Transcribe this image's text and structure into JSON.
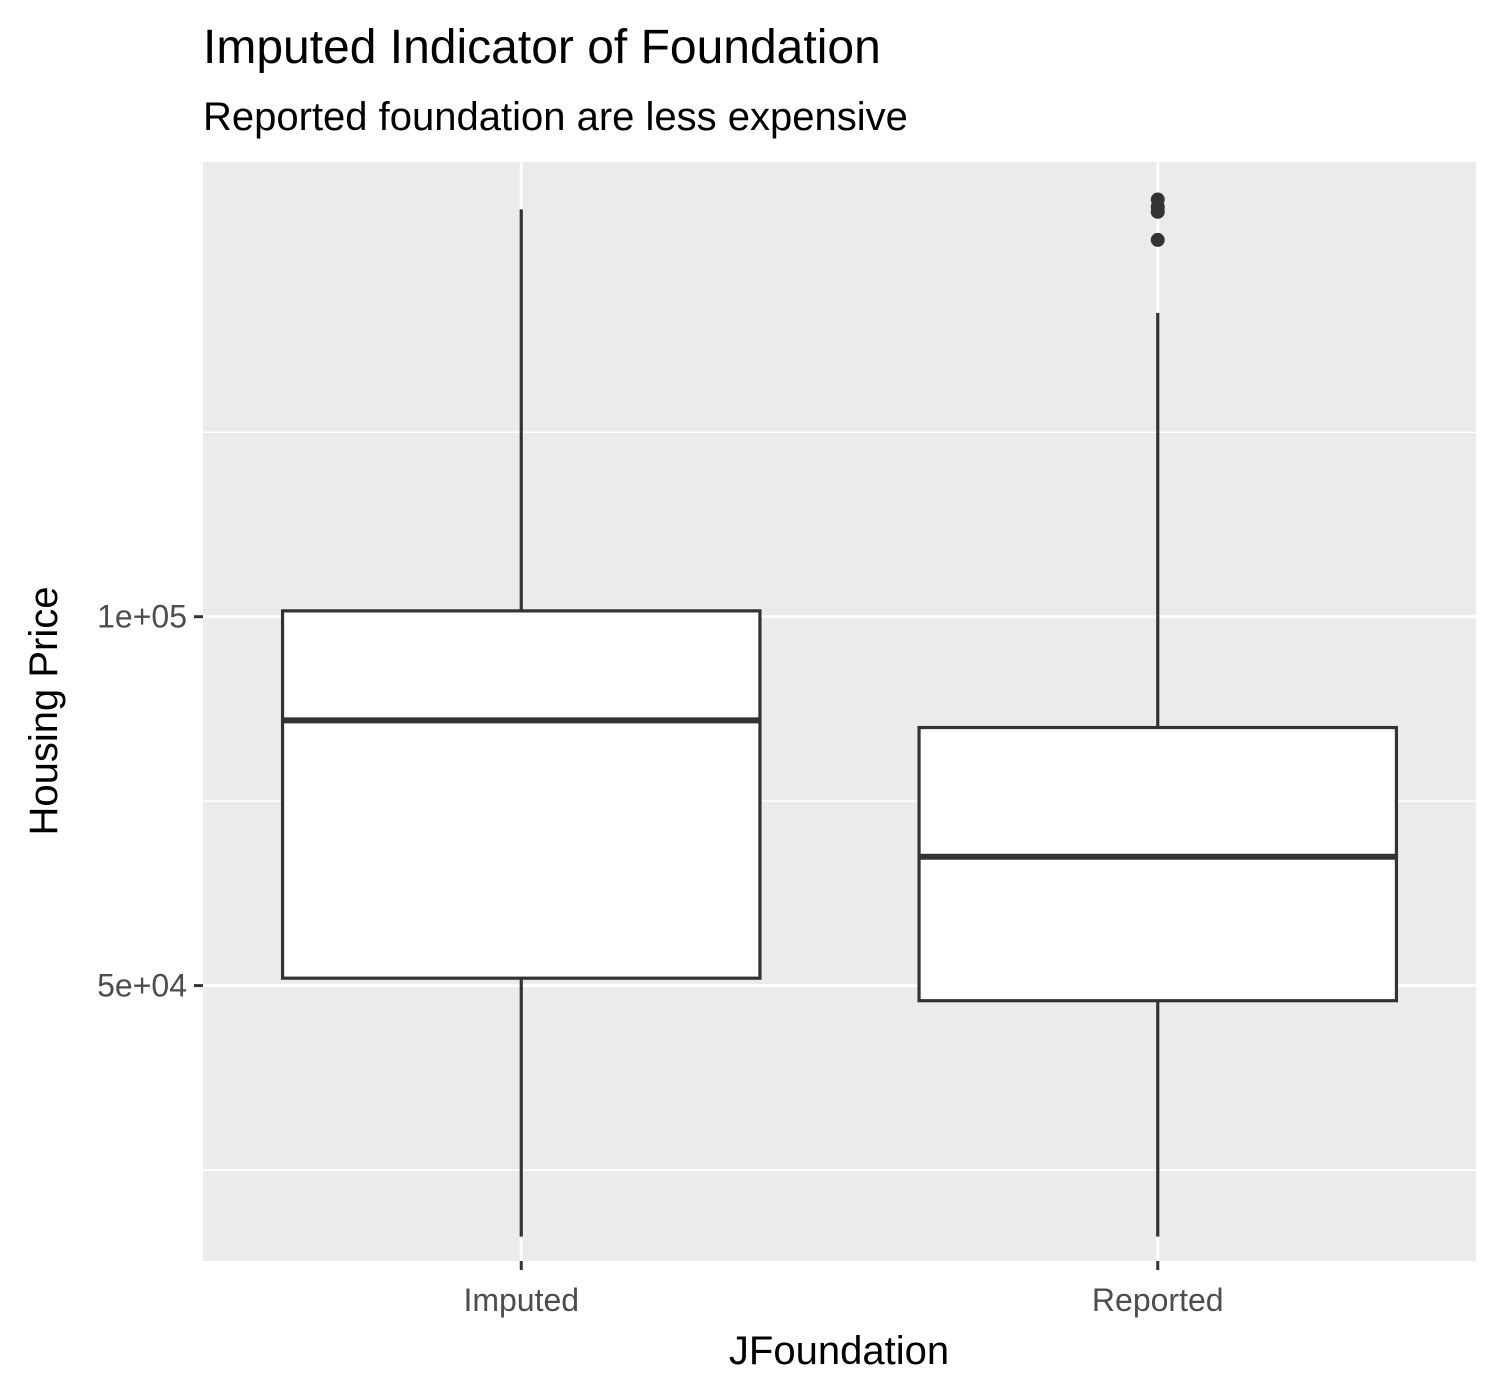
{
  "chart_data": {
    "type": "boxplot",
    "title": "Imputed Indicator of Foundation",
    "subtitle": "Reported foundation are less expensive",
    "xlabel": "JFoundation",
    "ylabel": "Housing Price",
    "categories": [
      "Imputed",
      "Reported"
    ],
    "boxes": [
      {
        "category": "Imputed",
        "lower_whisker": 31200,
        "q1": 50700,
        "median": 82300,
        "q3": 101100,
        "upper_whisker": 215000,
        "outliers": []
      },
      {
        "category": "Reported",
        "lower_whisker": 31200,
        "q1": 48600,
        "median": 63700,
        "q3": 81200,
        "upper_whisker": 177000,
        "outliers": [
          219000,
          216000,
          214000,
          203000
        ]
      }
    ],
    "y_scale": "log10",
    "ylim": [
      29800,
      235000
    ],
    "y_ticks": [
      50000,
      100000
    ],
    "y_tick_labels": [
      "5e+04",
      "1e+05"
    ],
    "y_minor_ticks": [
      35360,
      70710,
      141420
    ],
    "grid": true,
    "legend": "none",
    "colors": {
      "panel": "#ebebeb",
      "grid": "#ffffff",
      "box_fill": "#ffffff",
      "box_line": "#333333",
      "tick_text": "#4d4d4d",
      "axis_tick": "#333333"
    }
  }
}
